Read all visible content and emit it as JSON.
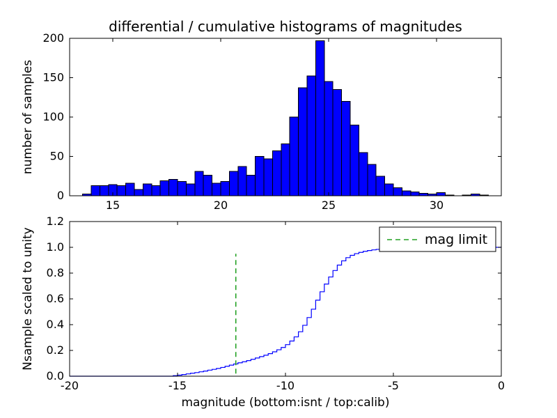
{
  "figure": {
    "background": "#ffffff",
    "frame_color": "#000000"
  },
  "chart_data": [
    {
      "type": "bar",
      "subplot": "top",
      "title": "differential / cumulative histograms of magnitudes",
      "ylabel": "number of samples",
      "xlim": [
        13,
        33
      ],
      "ylim": [
        0,
        200
      ],
      "xticks": [
        15,
        20,
        25,
        30
      ],
      "xticklabels": [
        "15",
        "20",
        "25",
        "30"
      ],
      "yticks": [
        0,
        50,
        100,
        150,
        200
      ],
      "yticklabels": [
        "0",
        "50",
        "100",
        "150",
        "200"
      ],
      "bin_start": 13.6,
      "bin_width": 0.4,
      "values": [
        2,
        13,
        13,
        14,
        13,
        16,
        8,
        15,
        13,
        19,
        21,
        18,
        15,
        31,
        26,
        16,
        18,
        31,
        37,
        26,
        50,
        47,
        57,
        66,
        100,
        137,
        152,
        197,
        145,
        135,
        120,
        90,
        55,
        40,
        25,
        15,
        10,
        6,
        5,
        3,
        2,
        4,
        1,
        0,
        1,
        2,
        1
      ],
      "bar_fill": "#0000ff",
      "bar_edge": "#000000",
      "grid": false
    },
    {
      "type": "line",
      "subplot": "bottom",
      "style": "step",
      "xlabel": "magnitude (bottom:isnt / top:calib)",
      "ylabel": "Nsample scaled to unity",
      "xlim": [
        -20,
        0
      ],
      "ylim": [
        0,
        1.2
      ],
      "xticks": [
        -20,
        -15,
        -10,
        -5,
        0
      ],
      "xticklabels": [
        "-20",
        "-15",
        "-10",
        "-5",
        "0"
      ],
      "yticks": [
        0,
        0.2,
        0.4,
        0.6,
        0.8,
        1.0,
        1.2
      ],
      "yticklabels": [
        "0.0",
        "0.2",
        "0.4",
        "0.6",
        "0.8",
        "1.0",
        "1.2"
      ],
      "line_color": "#0000ff",
      "points": [
        [
          -20,
          0
        ],
        [
          -15.4,
          0
        ],
        [
          -15.2,
          0.004
        ],
        [
          -15,
          0.008
        ],
        [
          -14.8,
          0.013
        ],
        [
          -14.6,
          0.018
        ],
        [
          -14.4,
          0.023
        ],
        [
          -14.2,
          0.028
        ],
        [
          -14,
          0.034
        ],
        [
          -13.8,
          0.04
        ],
        [
          -13.6,
          0.047
        ],
        [
          -13.4,
          0.053
        ],
        [
          -13.2,
          0.06
        ],
        [
          -13,
          0.068
        ],
        [
          -12.8,
          0.077
        ],
        [
          -12.6,
          0.086
        ],
        [
          -12.4,
          0.095
        ],
        [
          -12.2,
          0.104
        ],
        [
          -12,
          0.112
        ],
        [
          -11.8,
          0.121
        ],
        [
          -11.6,
          0.131
        ],
        [
          -11.4,
          0.141
        ],
        [
          -11.2,
          0.152
        ],
        [
          -11,
          0.163
        ],
        [
          -10.8,
          0.175
        ],
        [
          -10.6,
          0.189
        ],
        [
          -10.4,
          0.205
        ],
        [
          -10.2,
          0.223
        ],
        [
          -10,
          0.245
        ],
        [
          -9.8,
          0.273
        ],
        [
          -9.6,
          0.305
        ],
        [
          -9.4,
          0.345
        ],
        [
          -9.2,
          0.395
        ],
        [
          -9,
          0.455
        ],
        [
          -8.8,
          0.52
        ],
        [
          -8.6,
          0.59
        ],
        [
          -8.4,
          0.655
        ],
        [
          -8.2,
          0.715
        ],
        [
          -8,
          0.77
        ],
        [
          -7.8,
          0.82
        ],
        [
          -7.6,
          0.862
        ],
        [
          -7.4,
          0.895
        ],
        [
          -7.2,
          0.92
        ],
        [
          -7,
          0.938
        ],
        [
          -6.8,
          0.951
        ],
        [
          -6.6,
          0.961
        ],
        [
          -6.4,
          0.969
        ],
        [
          -6.2,
          0.975
        ],
        [
          -6,
          0.98
        ],
        [
          -5.8,
          0.984
        ],
        [
          -5.6,
          0.987
        ],
        [
          -5.4,
          0.99
        ],
        [
          -5.2,
          0.992
        ],
        [
          -5,
          0.994
        ],
        [
          -4.5,
          0.996
        ],
        [
          -4,
          0.998
        ],
        [
          -3.5,
          0.999
        ],
        [
          -3,
          1.0
        ],
        [
          0,
          1.0
        ]
      ],
      "mag_limit_line": {
        "x": -12.3,
        "y0": 0.02,
        "y1": 0.95,
        "color": "#22a022",
        "style": "dashed"
      },
      "legend": {
        "label": "mag limit",
        "position": "upper right"
      },
      "grid": false
    }
  ]
}
